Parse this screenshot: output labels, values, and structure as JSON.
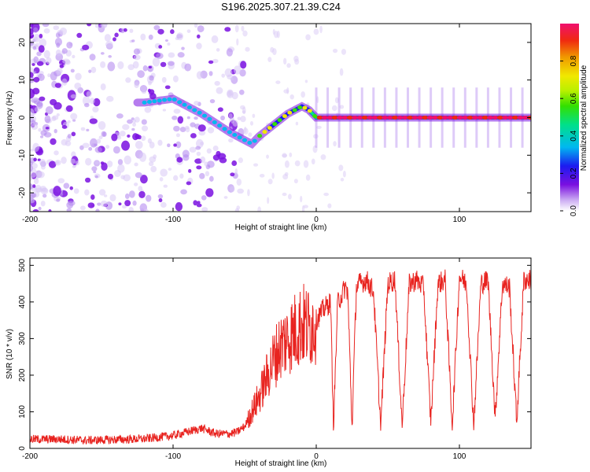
{
  "title": "S196.2025.307.21.39.C24",
  "colors": {
    "snr_line": "#e8231f",
    "dot_faint": "#d9c9f5",
    "dot_mid": "#b58cf0",
    "dot_strong": "#7a10e0"
  },
  "chart_data": [
    {
      "type": "heatmap",
      "title": "S196.2025.307.21.39.C24",
      "xlabel": "Height of straight line (km)",
      "ylabel": "Frequency (Hz)",
      "xlim": [
        -200,
        150
      ],
      "ylim": [
        -25,
        25
      ],
      "xticks": [
        -200,
        -100,
        0,
        100
      ],
      "xtick_labels": [
        "-200",
        "-100",
        "0",
        "100"
      ],
      "yticks": [
        -20,
        -10,
        0,
        10,
        20
      ],
      "ytick_labels": [
        "-20",
        "-10",
        "0",
        "10",
        "20"
      ],
      "colorbar": {
        "label": "Normalized spectral amplitude",
        "range": [
          0,
          1
        ],
        "ticks": [
          0.0,
          0.2,
          0.4,
          0.6,
          0.8
        ],
        "tick_labels": [
          "0.0",
          "0.2",
          "0.4",
          "0.6",
          "0.8"
        ]
      },
      "ridge": {
        "x": [
          -120,
          -100,
          -80,
          -60,
          -45,
          -40,
          -30,
          -20,
          -10,
          -5,
          0,
          10,
          30,
          60,
          100,
          150
        ],
        "freq": [
          4,
          5,
          1,
          -4,
          -7,
          -5,
          -2,
          1,
          3,
          2,
          0,
          0,
          0,
          0,
          0,
          0
        ]
      }
    },
    {
      "type": "line",
      "xlabel": "Height of straight line (km)",
      "ylabel": "SNR (10 * v/v)",
      "xlim": [
        -200,
        150
      ],
      "ylim": [
        0,
        520
      ],
      "xticks": [
        -200,
        -100,
        0,
        100
      ],
      "xtick_labels": [
        "-200",
        "-100",
        "0",
        "100"
      ],
      "yticks": [
        0,
        100,
        200,
        300,
        400,
        500
      ],
      "ytick_labels": [
        "0",
        "100",
        "200",
        "300",
        "400",
        "500"
      ],
      "series": [
        {
          "name": "SNR",
          "x": [
            -200,
            -180,
            -160,
            -140,
            -120,
            -100,
            -90,
            -80,
            -70,
            -60,
            -55,
            -50,
            -45,
            -40,
            -35,
            -30,
            -25,
            -20,
            -15,
            -10,
            -5,
            0,
            5,
            10,
            12,
            15,
            18,
            20,
            22,
            25,
            28,
            30,
            35,
            40,
            45,
            50,
            55,
            60,
            65,
            70,
            75,
            80,
            85,
            90,
            95,
            100,
            105,
            110,
            115,
            120,
            125,
            130,
            135,
            140,
            145,
            150
          ],
          "y": [
            25,
            25,
            22,
            24,
            26,
            35,
            45,
            55,
            40,
            40,
            45,
            60,
            100,
            140,
            190,
            240,
            280,
            300,
            320,
            340,
            330,
            350,
            380,
            400,
            60,
            400,
            420,
            440,
            430,
            60,
            440,
            450,
            460,
            430,
            60,
            450,
            460,
            60,
            450,
            460,
            440,
            70,
            450,
            460,
            60,
            470,
            450,
            60,
            450,
            460,
            80,
            450,
            440,
            70,
            460,
            460
          ]
        }
      ]
    }
  ]
}
